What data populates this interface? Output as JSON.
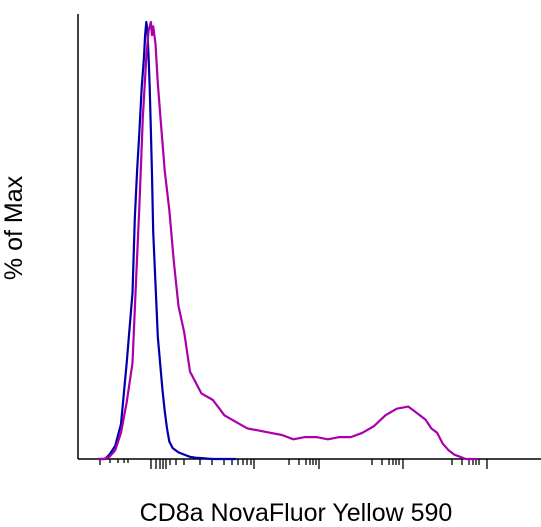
{
  "chart_data": {
    "type": "line",
    "title": "",
    "xlabel": "CD8a NovaFluor Yellow 590",
    "ylabel": "% of Max",
    "x_scale": "biexponential",
    "ylim": [
      0,
      100
    ],
    "grid": false,
    "legend": "none",
    "series": [
      {
        "color": "#0000aa",
        "x": [
          0,
          3,
          6,
          10,
          15,
          20,
          25,
          30,
          32,
          34,
          36,
          38,
          40,
          41,
          42,
          43,
          44,
          45,
          46,
          47,
          48,
          50,
          52,
          54,
          56,
          58,
          60,
          62,
          65,
          70,
          75,
          80,
          85,
          90,
          95,
          100,
          110,
          120
        ],
        "y": [
          0,
          0,
          0,
          1,
          3,
          8,
          22,
          38,
          55,
          66,
          75,
          85,
          92,
          97,
          100,
          98,
          92,
          85,
          75,
          65,
          52,
          40,
          28,
          22,
          16,
          11,
          7,
          4,
          2.5,
          1.5,
          1,
          0.5,
          0.3,
          0.2,
          0.1,
          0,
          0,
          0
        ]
      },
      {
        "color": "#aa00aa",
        "x": [
          0,
          5,
          10,
          15,
          20,
          25,
          30,
          33,
          36,
          39,
          42,
          44,
          46,
          47,
          48,
          50,
          52,
          55,
          58,
          62,
          66,
          70,
          75,
          80,
          90,
          100,
          110,
          120,
          130,
          140,
          150,
          160,
          170,
          180,
          190,
          200,
          210,
          220,
          230,
          240,
          250,
          260,
          270,
          275,
          280,
          285,
          290,
          295,
          300,
          305,
          310,
          315,
          320,
          330
        ],
        "y": [
          0,
          0,
          0.5,
          2,
          6,
          13,
          22,
          40,
          58,
          78,
          92,
          98,
          100,
          97,
          99,
          95,
          86,
          76,
          66,
          57,
          45,
          35,
          29,
          20,
          15,
          13.5,
          10,
          8.5,
          7,
          6.5,
          6,
          5.5,
          4.5,
          5,
          5,
          4.5,
          5,
          5,
          6,
          7.5,
          10,
          11.5,
          12,
          11,
          10,
          9,
          7,
          6,
          3.5,
          2,
          1,
          0.5,
          0,
          0
        ]
      }
    ]
  }
}
